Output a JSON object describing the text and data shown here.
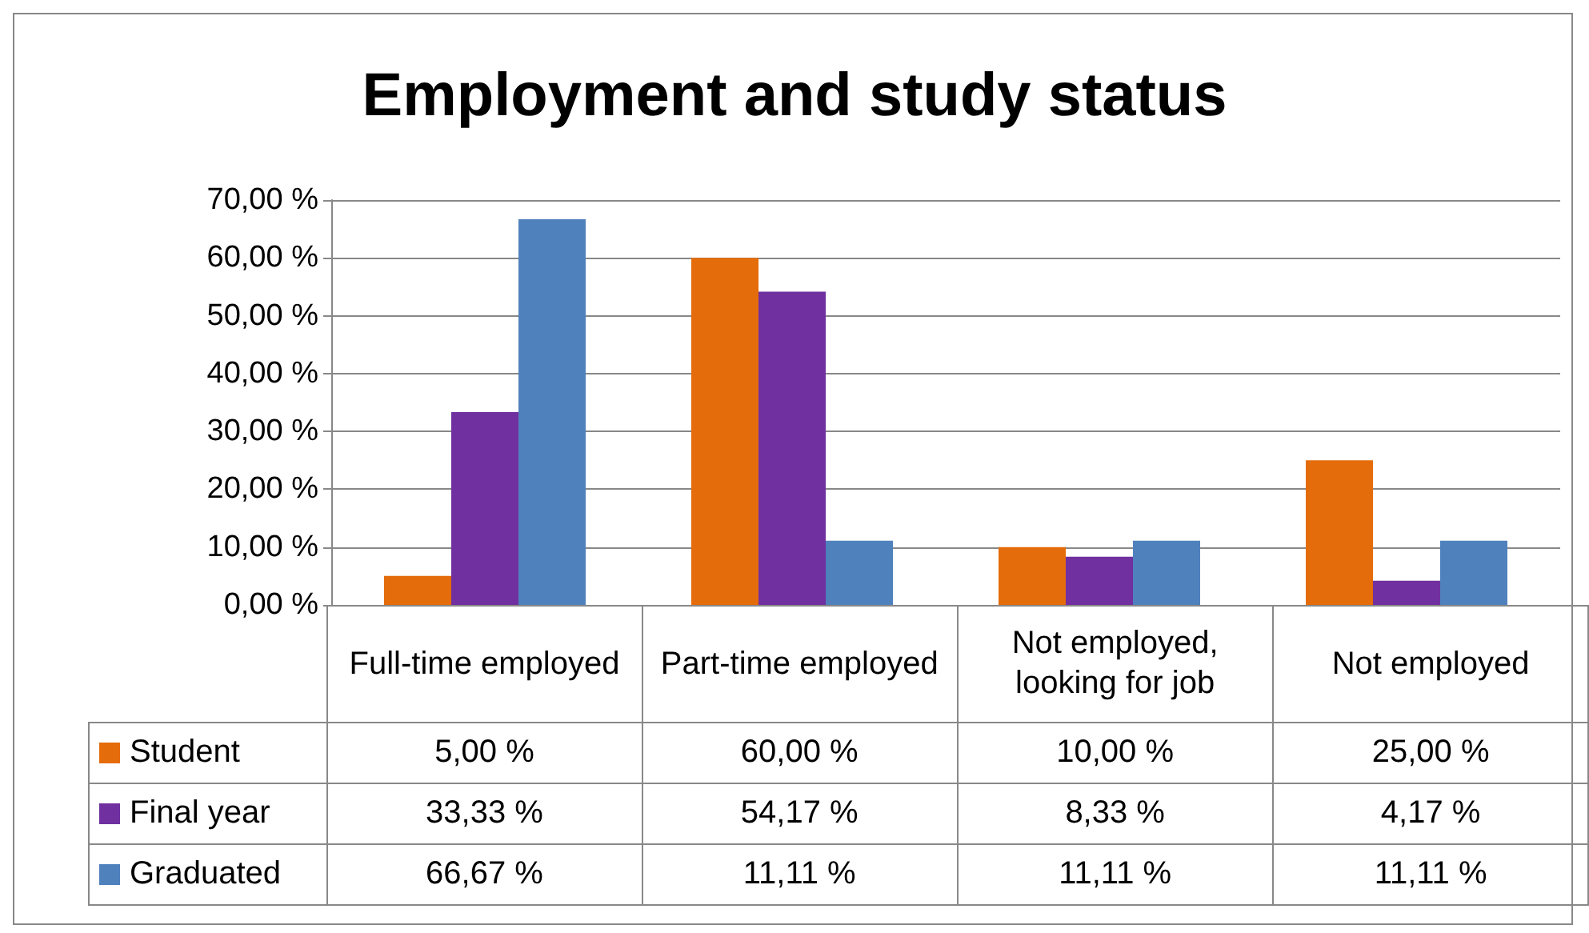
{
  "chart_data": {
    "type": "bar",
    "title": "Employment and study status",
    "categories": [
      "Full-time employed",
      "Part-time employed",
      "Not employed, looking for job",
      "Not employed"
    ],
    "series": [
      {
        "name": "Student",
        "color": "#e46c0a",
        "values": [
          5,
          60,
          10,
          25
        ],
        "value_labels": [
          "5,00 %",
          "60,00 %",
          "10,00 %",
          "25,00 %"
        ]
      },
      {
        "name": "Final year",
        "color": "#7030a0",
        "values": [
          33.33,
          54.17,
          8.33,
          4.17
        ],
        "value_labels": [
          "33,33 %",
          "54,17 %",
          "8,33 %",
          "4,17 %"
        ]
      },
      {
        "name": "Graduated",
        "color": "#4f81bd",
        "values": [
          66.67,
          11.11,
          11.11,
          11.11
        ],
        "value_labels": [
          "66,67 %",
          "11,11 %",
          "11,11 %",
          "11,11 %"
        ]
      }
    ],
    "ylim": [
      0,
      70
    ],
    "yticks": [
      {
        "value": 0,
        "label": "0,00 %"
      },
      {
        "value": 10,
        "label": "10,00 %"
      },
      {
        "value": 20,
        "label": "20,00 %"
      },
      {
        "value": 30,
        "label": "30,00 %"
      },
      {
        "value": 40,
        "label": "40,00 %"
      },
      {
        "value": 50,
        "label": "50,00 %"
      },
      {
        "value": 60,
        "label": "60,00 %"
      },
      {
        "value": 70,
        "label": "70,00 %"
      }
    ],
    "grid": "y",
    "legend": "bottom"
  }
}
